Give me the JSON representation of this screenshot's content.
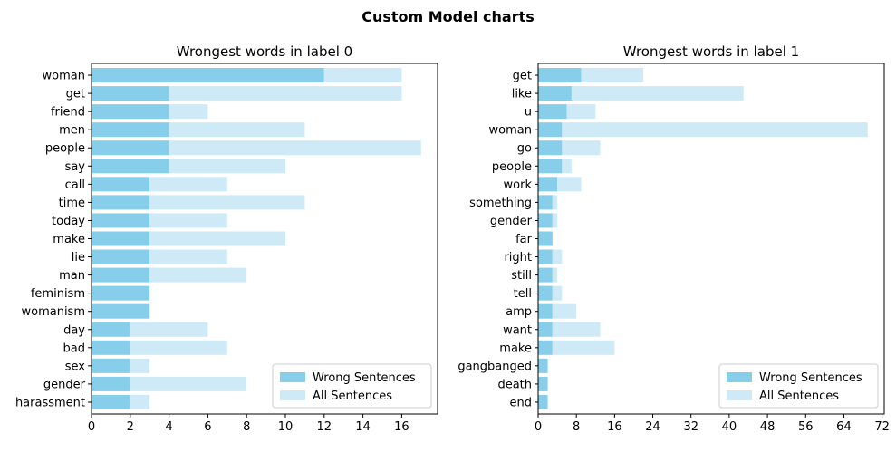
{
  "figure": {
    "suptitle": "Custom Model charts"
  },
  "colors": {
    "wrong": "#87ceeb",
    "all": "#cfeaf7",
    "axis": "#000000"
  },
  "chart_data": [
    {
      "type": "bar",
      "orientation": "horizontal",
      "title": "Wrongest words in label 0",
      "xlabel": "",
      "ylabel": "",
      "xlim": [
        0,
        17.85
      ],
      "xticks": [
        0,
        2,
        4,
        6,
        8,
        10,
        12,
        14,
        16
      ],
      "legend_position": "lower right",
      "categories": [
        "woman",
        "get",
        "friend",
        "men",
        "people",
        "say",
        "call",
        "time",
        "today",
        "make",
        "lie",
        "man",
        "feminism",
        "womanism",
        "day",
        "bad",
        "sex",
        "gender",
        "harassment"
      ],
      "series": [
        {
          "name": "Wrong Sentences",
          "values": [
            12,
            4,
            4,
            4,
            4,
            4,
            3,
            3,
            3,
            3,
            3,
            3,
            3,
            3,
            2,
            2,
            2,
            2,
            2
          ]
        },
        {
          "name": "All Sentences",
          "values": [
            16,
            16,
            6,
            11,
            17,
            10,
            7,
            11,
            7,
            10,
            7,
            8,
            3,
            3,
            6,
            7,
            3,
            8,
            3
          ]
        }
      ]
    },
    {
      "type": "bar",
      "orientation": "horizontal",
      "title": "Wrongest words in label 1",
      "xlabel": "",
      "ylabel": "",
      "xlim": [
        0,
        72.45
      ],
      "xticks": [
        0,
        8,
        16,
        24,
        32,
        40,
        48,
        56,
        64,
        72
      ],
      "legend_position": "lower right",
      "categories": [
        "get",
        "like",
        "u",
        "woman",
        "go",
        "people",
        "work",
        "something",
        "gender",
        "far",
        "right",
        "still",
        "tell",
        "amp",
        "want",
        "make",
        "gangbanged",
        "death",
        "end"
      ],
      "series": [
        {
          "name": "Wrong Sentences",
          "values": [
            9,
            7,
            6,
            5,
            5,
            5,
            4,
            3,
            3,
            3,
            3,
            3,
            3,
            3,
            3,
            3,
            2,
            2,
            2
          ]
        },
        {
          "name": "All Sentences",
          "values": [
            22,
            43,
            12,
            69,
            13,
            7,
            9,
            4,
            4,
            3,
            5,
            4,
            5,
            8,
            13,
            16,
            2,
            2,
            2
          ]
        }
      ]
    }
  ]
}
